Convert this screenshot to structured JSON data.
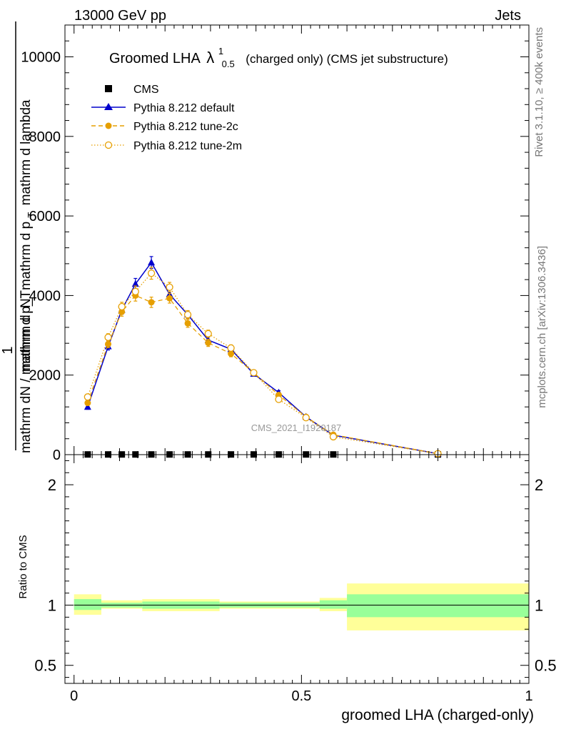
{
  "header": {
    "energy": "13000 GeV pp",
    "channel": "Jets"
  },
  "side": {
    "rivet": "Rivet 3.1.10, ≥ 400k events",
    "mcplots": "mcplots.cern.ch [arXiv:1306.3436]"
  },
  "chart_data": {
    "type": "line",
    "title_main": "Groomed LHA",
    "title_lambda": "λ",
    "title_sup": "1",
    "title_sub": "0.5",
    "title_rest": "(charged only) (CMS jet substructure)",
    "watermark": "CMS_2021_I1920187",
    "ylabel_top": "1",
    "ylabel_frac": "mathrm dN / mathrm d p_T",
    "ylabel_a": "mathrm d",
    "ylabel_b": "N",
    "ylabel_c": "mathrm d p",
    "ylabel_d": "T",
    "ylabel_e": "mathrm d lambda",
    "xlabel": "groomed LHA (charged-only)",
    "ratio_ylabel": "Ratio to CMS",
    "xlim": [
      -0.02,
      1.0
    ],
    "ylim": [
      0,
      10800
    ],
    "ratio_ylim": [
      0.35,
      2.25
    ],
    "x_ticks": [
      {
        "v": 0,
        "label": "0"
      },
      {
        "v": 0.5,
        "label": "0.5"
      },
      {
        "v": 1,
        "label": "1"
      }
    ],
    "y_ticks": [
      {
        "v": 0,
        "label": "0"
      },
      {
        "v": 2000,
        "label": "2000"
      },
      {
        "v": 4000,
        "label": "4000"
      },
      {
        "v": 6000,
        "label": "6000"
      },
      {
        "v": 8000,
        "label": "8000"
      },
      {
        "v": 10000,
        "label": "10000"
      }
    ],
    "ratio_ticks": [
      {
        "v": 0.5,
        "label": "0.5"
      },
      {
        "v": 1,
        "label": "1"
      },
      {
        "v": 2,
        "label": "2"
      }
    ],
    "bins": [
      0,
      0.06,
      0.09,
      0.12,
      0.15,
      0.19,
      0.23,
      0.27,
      0.32,
      0.37,
      0.42,
      0.48,
      0.54,
      0.6,
      1.0
    ],
    "x": [
      0.03,
      0.075,
      0.105,
      0.135,
      0.17,
      0.21,
      0.25,
      0.295,
      0.345,
      0.395,
      0.45,
      0.51,
      0.57,
      0.8
    ],
    "ratio_bands": [
      {
        "x0": 0.0,
        "x1": 0.06,
        "in_lo": 0.96,
        "in_hi": 1.05,
        "out_lo": 0.92,
        "out_hi": 1.09
      },
      {
        "x0": 0.06,
        "x1": 0.15,
        "in_lo": 0.98,
        "in_hi": 1.02,
        "out_lo": 0.97,
        "out_hi": 1.04
      },
      {
        "x0": 0.15,
        "x1": 0.32,
        "in_lo": 0.97,
        "in_hi": 1.03,
        "out_lo": 0.95,
        "out_hi": 1.05
      },
      {
        "x0": 0.32,
        "x1": 0.54,
        "in_lo": 0.98,
        "in_hi": 1.02,
        "out_lo": 0.97,
        "out_hi": 1.03
      },
      {
        "x0": 0.54,
        "x1": 0.6,
        "in_lo": 0.97,
        "in_hi": 1.04,
        "out_lo": 0.95,
        "out_hi": 1.06
      },
      {
        "x0": 0.6,
        "x1": 1.0,
        "in_lo": 0.9,
        "in_hi": 1.09,
        "out_lo": 0.79,
        "out_hi": 1.18
      }
    ],
    "series": [
      {
        "name": "CMS",
        "color": "#000000",
        "marker": "square",
        "style": "none",
        "values": [
          5,
          5,
          5,
          5,
          5,
          5,
          5,
          5,
          5,
          5,
          5,
          5,
          5,
          5
        ],
        "errors": [
          0,
          0,
          0,
          0,
          0,
          0,
          0,
          0,
          0,
          0,
          0,
          0,
          0,
          0
        ]
      },
      {
        "name": "Pythia 8.212 default",
        "color": "#0000cc",
        "marker": "triangle",
        "style": "solid",
        "values": [
          1200,
          2720,
          3640,
          4290,
          4830,
          4030,
          3520,
          2880,
          2650,
          2030,
          1560,
          950,
          490,
          25
        ],
        "errors": [
          60,
          90,
          110,
          140,
          150,
          120,
          100,
          90,
          80,
          60,
          50,
          40,
          30,
          5
        ]
      },
      {
        "name": "Pythia 8.212 tune-2c",
        "color": "#e69f00",
        "marker": "circle",
        "style": "dashed",
        "values": [
          1300,
          2780,
          3590,
          4000,
          3830,
          3930,
          3300,
          2810,
          2540,
          2060,
          1500,
          950,
          500,
          25
        ],
        "errors": [
          60,
          90,
          110,
          140,
          130,
          120,
          100,
          90,
          80,
          60,
          50,
          40,
          30,
          5
        ]
      },
      {
        "name": "Pythia 8.212 tune-2m",
        "color": "#e69f00",
        "marker": "open-circle",
        "style": "dotted",
        "values": [
          1450,
          2950,
          3720,
          4100,
          4560,
          4210,
          3520,
          3040,
          2680,
          2060,
          1390,
          930,
          450,
          25
        ],
        "errors": [
          60,
          90,
          110,
          140,
          150,
          120,
          100,
          90,
          80,
          60,
          50,
          40,
          30,
          5
        ]
      }
    ]
  }
}
